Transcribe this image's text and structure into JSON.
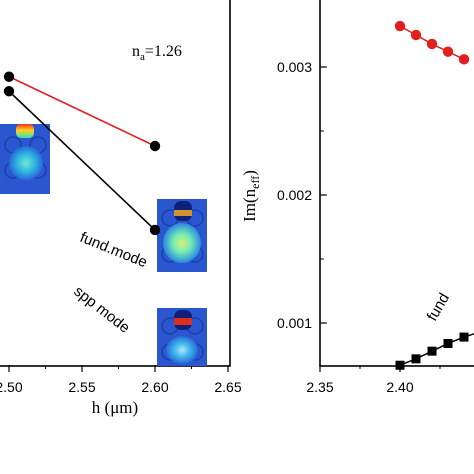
{
  "chart_data": [
    {
      "type": "line",
      "xlabel": "h (μm)",
      "ylabel": "",
      "xlim": [
        2.45,
        2.65
      ],
      "ylim": [
        0.0,
        1.0
      ],
      "x_ticks": [
        2.5,
        2.55,
        2.6,
        2.65
      ],
      "x_tick_labels": [
        "2.50",
        "2.55",
        "2.60",
        "2.65"
      ],
      "grid": false,
      "annotations": [
        {
          "text_main": "n",
          "text_sub": "a",
          "text_rest": "=1.26"
        },
        {
          "text": "fund.mode"
        },
        {
          "text": "spp mode"
        }
      ],
      "insets": [
        "mode-field-profile-top-left",
        "mode-field-profile-right-upper",
        "mode-field-profile-right-lower"
      ],
      "series": [
        {
          "key": "fund",
          "color": "#e02020",
          "marker": "circle",
          "x": [
            2.5,
            2.6
          ],
          "y": [
            0.79,
            0.6
          ]
        },
        {
          "key": "spp",
          "color": "#000000",
          "marker": "circle",
          "x": [
            2.5,
            2.6
          ],
          "y": [
            0.75,
            0.37
          ]
        }
      ]
    },
    {
      "type": "line",
      "xlabel": "",
      "ylabel_main": "Im(n",
      "ylabel_sub": "eff",
      "ylabel_end": ")",
      "xlim": [
        2.35,
        2.45
      ],
      "ylim": [
        0.0,
        0.0034
      ],
      "x_ticks": [
        2.35,
        2.4
      ],
      "x_tick_labels": [
        "2.35",
        "2.40"
      ],
      "y_ticks": [
        0.001,
        0.002,
        0.003
      ],
      "y_tick_labels": [
        "0.001",
        "0.002",
        "0.003"
      ],
      "grid": false,
      "annotations": [
        {
          "text": "fund"
        }
      ],
      "series": [
        {
          "key": "spp",
          "color": "#e02020",
          "marker": "circle",
          "x": [
            2.4,
            2.41,
            2.42,
            2.43,
            2.44
          ],
          "y": [
            0.00332,
            0.00325,
            0.00318,
            0.00312,
            0.00306
          ]
        },
        {
          "key": "fund",
          "color": "#000000",
          "marker": "square",
          "x": [
            2.4,
            2.41,
            2.42,
            2.43,
            2.44,
            2.45
          ],
          "y": [
            0.00067,
            0.00072,
            0.00078,
            0.00084,
            0.00089,
            0.00093
          ]
        }
      ]
    }
  ]
}
